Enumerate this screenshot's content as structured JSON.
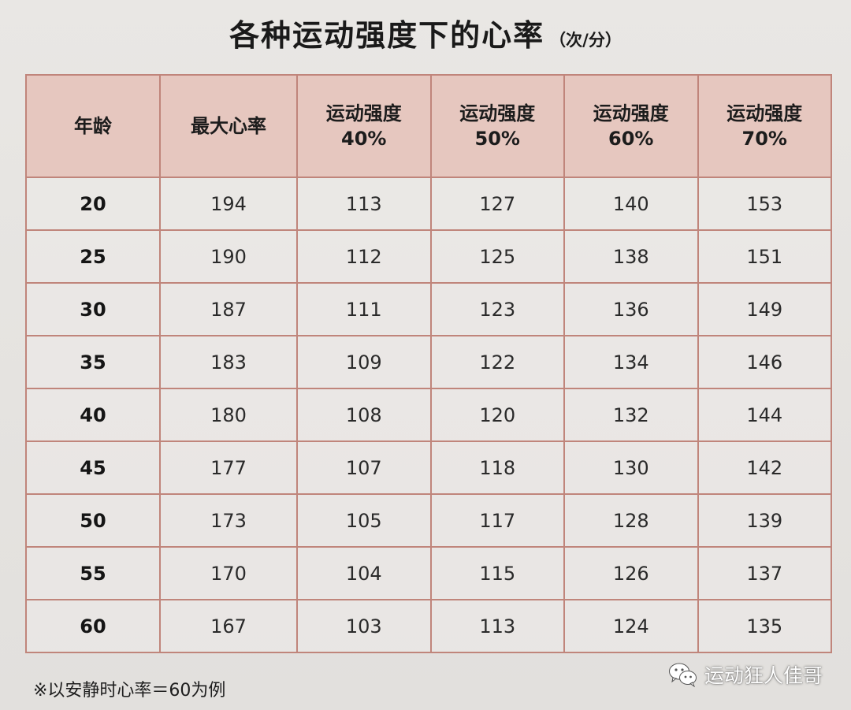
{
  "title": "各种运动强度下的心率",
  "unit": "（次/分）",
  "table": {
    "headers": [
      {
        "line1": "年龄",
        "line2": ""
      },
      {
        "line1": "最大心率",
        "line2": ""
      },
      {
        "line1": "运动强度",
        "line2": "40%"
      },
      {
        "line1": "运动强度",
        "line2": "50%"
      },
      {
        "line1": "运动强度",
        "line2": "60%"
      },
      {
        "line1": "运动强度",
        "line2": "70%"
      }
    ],
    "rows": [
      [
        "20",
        "194",
        "113",
        "127",
        "140",
        "153"
      ],
      [
        "25",
        "190",
        "112",
        "125",
        "138",
        "151"
      ],
      [
        "30",
        "187",
        "111",
        "123",
        "136",
        "149"
      ],
      [
        "35",
        "183",
        "109",
        "122",
        "134",
        "146"
      ],
      [
        "40",
        "180",
        "108",
        "120",
        "132",
        "144"
      ],
      [
        "45",
        "177",
        "107",
        "118",
        "130",
        "142"
      ],
      [
        "50",
        "173",
        "105",
        "117",
        "128",
        "139"
      ],
      [
        "55",
        "170",
        "104",
        "115",
        "126",
        "137"
      ],
      [
        "60",
        "167",
        "103",
        "113",
        "124",
        "135"
      ]
    ]
  },
  "note": "※以安静时心率＝60为例",
  "watermark": {
    "text": "运动狂人佳哥",
    "icon": "wechat-icon"
  }
}
